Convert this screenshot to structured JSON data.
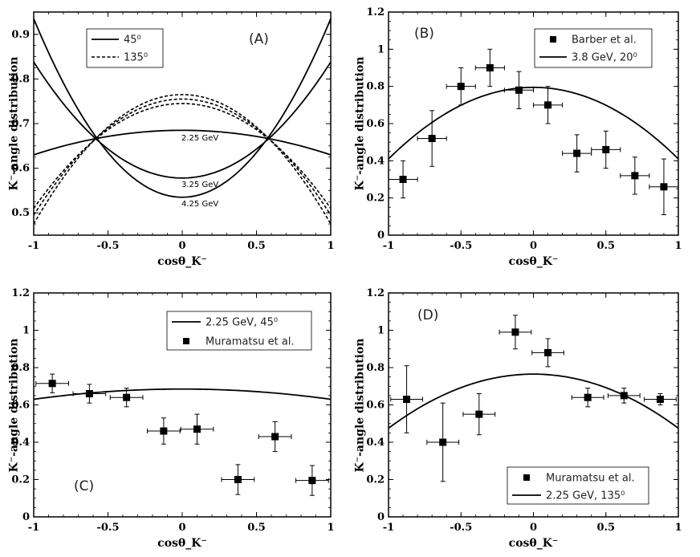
{
  "chart_data": [
    {
      "id": "A",
      "type": "line",
      "panel_label": "(A)",
      "xlabel": "cosθ_K⁻",
      "ylabel": "K⁻-angle distribution",
      "xlim": [
        -1,
        1
      ],
      "ylim": [
        0.45,
        0.95
      ],
      "xticks": [
        "-1",
        "-0.5",
        "0",
        "0.5",
        "1"
      ],
      "xtick_values": [
        -1,
        -0.5,
        0,
        0.5,
        1
      ],
      "yticks": [
        "0.5",
        "0.6",
        "0.7",
        "0.8",
        "0.9"
      ],
      "ytick_values": [
        0.5,
        0.6,
        0.7,
        0.8,
        0.9
      ],
      "legend": [
        {
          "label": "45⁰",
          "style": "solid"
        },
        {
          "label": "135⁰",
          "style": "dashed"
        }
      ],
      "series": [
        {
          "name": "2.25 GeV, 45⁰",
          "style": "solid",
          "center": 0.685,
          "curvature": -0.055,
          "label": "2.25 GeV"
        },
        {
          "name": "3.25 GeV, 45⁰",
          "style": "solid",
          "center": 0.578,
          "curvature": 0.26,
          "label": "3.25 GeV"
        },
        {
          "name": "4.25 GeV, 45⁰",
          "style": "solid",
          "center": 0.535,
          "curvature": 0.4,
          "label": "4.25 GeV"
        },
        {
          "name": "2.25 GeV, 135⁰",
          "style": "dashed",
          "center": 0.765,
          "curvature": -0.29
        },
        {
          "name": "3.25 GeV, 135⁰",
          "style": "dashed",
          "center": 0.755,
          "curvature": -0.26
        },
        {
          "name": "4.25 GeV, 135⁰",
          "style": "dashed",
          "center": 0.745,
          "curvature": -0.235
        }
      ]
    },
    {
      "id": "B",
      "type": "scatter",
      "panel_label": "(B)",
      "xlabel": "cosθ_K⁻",
      "ylabel": "K⁻-angle distribution",
      "xlim": [
        -1,
        1
      ],
      "ylim": [
        0,
        1.2
      ],
      "xticks": [
        "-1",
        "-0.5",
        "0",
        "0.5",
        "1"
      ],
      "xtick_values": [
        -1,
        -0.5,
        0,
        0.5,
        1
      ],
      "yticks": [
        "0",
        "0.2",
        "0.4",
        "0.6",
        "0.8",
        "1",
        "1.2"
      ],
      "ytick_values": [
        0,
        0.2,
        0.4,
        0.6,
        0.8,
        1,
        1.2
      ],
      "legend": [
        {
          "label": "Barber et al.",
          "style": "marker"
        },
        {
          "label": "3.8 GeV, 20⁰",
          "style": "solid"
        }
      ],
      "curve": {
        "center": 0.795,
        "curvature": -0.385
      },
      "points": [
        {
          "x": -0.9,
          "y": 0.3,
          "xerr": 0.1,
          "yerr": 0.1
        },
        {
          "x": -0.7,
          "y": 0.52,
          "xerr": 0.1,
          "yerr": 0.15
        },
        {
          "x": -0.5,
          "y": 0.8,
          "xerr": 0.1,
          "yerr": 0.1
        },
        {
          "x": -0.3,
          "y": 0.9,
          "xerr": 0.1,
          "yerr": 0.1
        },
        {
          "x": -0.1,
          "y": 0.78,
          "xerr": 0.1,
          "yerr": 0.1
        },
        {
          "x": 0.1,
          "y": 0.7,
          "xerr": 0.1,
          "yerr": 0.1
        },
        {
          "x": 0.3,
          "y": 0.44,
          "xerr": 0.1,
          "yerr": 0.1
        },
        {
          "x": 0.5,
          "y": 0.46,
          "xerr": 0.1,
          "yerr": 0.1
        },
        {
          "x": 0.7,
          "y": 0.32,
          "xerr": 0.1,
          "yerr": 0.1
        },
        {
          "x": 0.9,
          "y": 0.26,
          "xerr": 0.1,
          "yerr": 0.15
        }
      ]
    },
    {
      "id": "C",
      "type": "scatter",
      "panel_label": "(C)",
      "xlabel": "cosθ_K⁻",
      "ylabel": "K⁻-angle distribution",
      "xlim": [
        -1,
        1
      ],
      "ylim": [
        0,
        1.2
      ],
      "xticks": [
        "-1",
        "-0.5",
        "0",
        "0.5",
        "1"
      ],
      "xtick_values": [
        -1,
        -0.5,
        0,
        0.5,
        1
      ],
      "yticks": [
        "0",
        "0.2",
        "0.4",
        "0.6",
        "0.8",
        "1",
        "1.2"
      ],
      "ytick_values": [
        0,
        0.2,
        0.4,
        0.6,
        0.8,
        1,
        1.2
      ],
      "legend": [
        {
          "label": "2.25 GeV, 45⁰",
          "style": "solid"
        },
        {
          "label": "Muramatsu et al.",
          "style": "marker"
        }
      ],
      "curve": {
        "center": 0.685,
        "curvature": -0.055
      },
      "points": [
        {
          "x": -0.875,
          "y": 0.715,
          "xerr": 0.11,
          "yerr": 0.05
        },
        {
          "x": -0.625,
          "y": 0.66,
          "xerr": 0.11,
          "yerr": 0.05
        },
        {
          "x": -0.375,
          "y": 0.64,
          "xerr": 0.11,
          "yerr": 0.05
        },
        {
          "x": -0.125,
          "y": 0.46,
          "xerr": 0.11,
          "yerr": 0.07
        },
        {
          "x": 0.1,
          "y": 0.47,
          "xerr": 0.11,
          "yerr": 0.08
        },
        {
          "x": 0.375,
          "y": 0.2,
          "xerr": 0.11,
          "yerr": 0.08
        },
        {
          "x": 0.625,
          "y": 0.43,
          "xerr": 0.11,
          "yerr": 0.08
        },
        {
          "x": 0.875,
          "y": 0.195,
          "xerr": 0.11,
          "yerr": 0.08
        }
      ]
    },
    {
      "id": "D",
      "type": "scatter",
      "panel_label": "(D)",
      "xlabel": "cosθ_K⁻",
      "ylabel": "K⁻-angle distribution",
      "xlim": [
        -1,
        1
      ],
      "ylim": [
        0,
        1.2
      ],
      "xticks": [
        "-1",
        "-0.5",
        "0",
        "0.5",
        "1"
      ],
      "xtick_values": [
        -1,
        -0.5,
        0,
        0.5,
        1
      ],
      "yticks": [
        "0",
        "0.2",
        "0.4",
        "0.6",
        "0.8",
        "1",
        "1.2"
      ],
      "ytick_values": [
        0,
        0.2,
        0.4,
        0.6,
        0.8,
        1,
        1.2
      ],
      "legend": [
        {
          "label": "Muramatsu et al.",
          "style": "marker"
        },
        {
          "label": "2.25 GeV, 135⁰",
          "style": "solid"
        }
      ],
      "curve": {
        "center": 0.765,
        "curvature": -0.29
      },
      "points": [
        {
          "x": -0.875,
          "y": 0.63,
          "xerr": 0.11,
          "yerr": 0.18
        },
        {
          "x": -0.625,
          "y": 0.4,
          "xerr": 0.11,
          "yerr": 0.21
        },
        {
          "x": -0.375,
          "y": 0.55,
          "xerr": 0.11,
          "yerr": 0.11
        },
        {
          "x": -0.125,
          "y": 0.99,
          "xerr": 0.11,
          "yerr": 0.09
        },
        {
          "x": 0.1,
          "y": 0.88,
          "xerr": 0.11,
          "yerr": 0.075
        },
        {
          "x": 0.375,
          "y": 0.64,
          "xerr": 0.11,
          "yerr": 0.05
        },
        {
          "x": 0.625,
          "y": 0.65,
          "xerr": 0.11,
          "yerr": 0.04
        },
        {
          "x": 0.875,
          "y": 0.63,
          "xerr": 0.11,
          "yerr": 0.03
        }
      ]
    }
  ]
}
